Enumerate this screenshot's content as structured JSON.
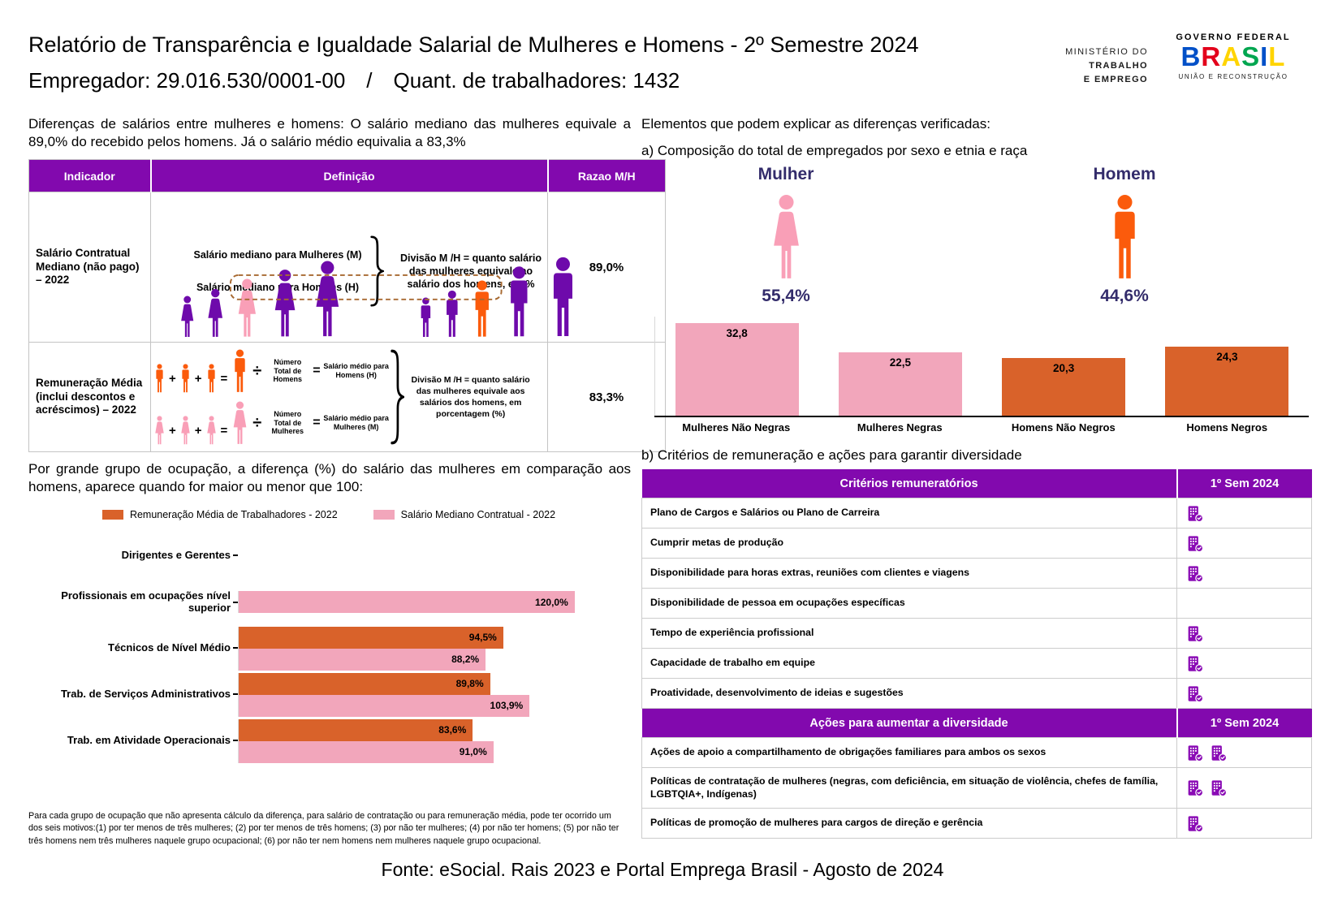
{
  "header": {
    "title": "Relatório de Transparência e Igualdade Salarial de Mulheres e Homens - 2º Semestre 2024",
    "employer": "Empregador: 29.016.530/0001-00",
    "separator": "/",
    "workers": "Quant. de trabalhadores: 1432",
    "ministry": {
      "line1": "MINISTÉRIO DO",
      "line2": "TRABALHO",
      "line3": "E EMPREGO"
    },
    "gov": {
      "top": "GOVERNO FEDERAL",
      "brand": [
        "B",
        "R",
        "A",
        "S",
        "I",
        "L"
      ],
      "brand_colors": [
        "#0050C8",
        "#E3001B",
        "#FFD400",
        "#00A650",
        "#0050C8",
        "#FFD400"
      ],
      "bottom": "UNIÃO E RECONSTRUÇÃO"
    }
  },
  "left": {
    "intro": "Diferenças de salários entre mulheres e homens: O salário mediano das mulheres equivale a 89,0% do recebido pelos homens. Já o salário médio equivalia a 83,3%",
    "table": {
      "headers": [
        "Indicador",
        "Definição",
        "Razao M/H"
      ],
      "rows": [
        {
          "indicator": "Salário Contratual Mediano (não pago) – 2022",
          "def_line1": "Salário mediano para Mulheres (M)",
          "def_line2": "Salário mediano para Homens (H)",
          "def_note": "Divisão M /H = quanto salário das mulheres equivale ao salário dos homens, em %",
          "ratio": "89,0%"
        },
        {
          "indicator": "Remuneração Média (inclui descontos e acréscimos) – 2022",
          "men_count_label": "Número Total de Homens",
          "men_avg_label": "Salário médio para Homens (H)",
          "women_count_label": "Número Total de Mulheres",
          "women_avg_label": "Salário médio para Mulheres (M)",
          "def_note": "Divisão M /H = quanto salário das mulheres equivale aos salários dos homens, em porcentagem (%)",
          "ops": {
            "plus": "+",
            "equals": "=",
            "divide": "÷"
          },
          "ratio": "83,3%"
        }
      ]
    },
    "occupation_intro": "Por grande grupo de ocupação, a diferença (%) do salário das mulheres em comparação aos homens, aparece quando for maior ou menor que 100:",
    "footnote": "Para cada grupo de ocupação que não apresenta cálculo da diferença, para salário de contratação ou para remuneração média, pode ter ocorrido um dos seis motivos:(1) por ter menos de três mulheres; (2) por ter menos de três homens; (3) por não ter mulheres; (4) por não ter homens; (5) por não ter três homens nem três mulheres naquele grupo ocupacional; (6) por não ter nem homens nem mulheres naquele grupo ocupacional."
  },
  "right": {
    "elements_title": "Elementos que podem explicar as diferenças verificadas:",
    "a_title": "a) Composição do total de empregados por sexo e etnia e raça",
    "mulher_label": "Mulher",
    "mulher_pct": "55,4%",
    "homem_label": "Homem",
    "homem_pct": "44,6%",
    "b_title": "b) Critérios de remuneração e ações para garantir diversidade",
    "criteria_sections": [
      {
        "header": "Critérios remuneratórios",
        "period": "1º Sem 2024",
        "rows": [
          {
            "label": "Plano de Cargos e Salários ou Plano de Carreira",
            "icons": 1
          },
          {
            "label": "Cumprir metas de produção",
            "icons": 1
          },
          {
            "label": "Disponibilidade para horas extras, reuniões com clientes e viagens",
            "icons": 1
          },
          {
            "label": "Disponibilidade de pessoa em ocupações específicas",
            "icons": 0
          },
          {
            "label": "Tempo de experiência profissional",
            "icons": 1
          },
          {
            "label": "Capacidade de trabalho em equipe",
            "icons": 1
          },
          {
            "label": "Proatividade, desenvolvimento de ideias e sugestões",
            "icons": 1
          }
        ]
      },
      {
        "header": "Ações para aumentar a diversidade",
        "period": "1º Sem 2024",
        "rows": [
          {
            "label": "Ações de apoio a compartilhamento de obrigações familiares para ambos os sexos",
            "icons": 2
          },
          {
            "label": "Políticas de contratação de mulheres (negras, com deficiência, em situação de violência, chefes de família, LGBTQIA+, Indígenas)",
            "icons": 2
          },
          {
            "label": "Políticas de promoção de mulheres para cargos de direção e gerência",
            "icons": 1
          }
        ]
      }
    ]
  },
  "footer": {
    "source": "Fonte: eSocial. Rais 2023 e Portal Emprega Brasil - Agosto de 2024"
  },
  "colors": {
    "purple_header": "#8209AE",
    "purple_icon": "#8A0BB5",
    "figure_purple": "#6E0AAB",
    "figure_pink": "#F99FB7",
    "figure_orange": "#FB5B0C",
    "bar_pink": "#F2A6BB",
    "bar_orange": "#D9622A",
    "navy_text": "#332C6B"
  },
  "chart_data": [
    {
      "type": "bar",
      "title": "a) Composição do total de empregados por sexo e etnia e raça",
      "categories": [
        "Mulheres Não Negras",
        "Mulheres Negras",
        "Homens Não Negros",
        "Homens Negros"
      ],
      "values": [
        32.8,
        22.5,
        20.3,
        24.3
      ],
      "labels": [
        "32,8",
        "22,5",
        "20,3",
        "24,3"
      ],
      "colors": [
        "#F2A6BB",
        "#F2A6BB",
        "#D9622A",
        "#D9622A"
      ],
      "xlabel": "",
      "ylabel": "",
      "ylim": [
        0,
        35
      ],
      "grid": false,
      "legend": "none"
    },
    {
      "type": "bar",
      "orientation": "horizontal",
      "title": "Por grande grupo de ocupação, a diferença (%) do salário das mulheres em comparação aos homens",
      "categories": [
        "Dirigentes e Gerentes",
        "Profissionais em ocupações nível superior",
        "Técnicos de Nível Médio",
        "Trab. de Serviços Administrativos",
        "Trab. em Atividade Operacionais"
      ],
      "series": [
        {
          "name": "Remuneração Média de Trabalhadores - 2022",
          "color": "#D9622A",
          "values": [
            null,
            null,
            94.5,
            89.8,
            83.6
          ],
          "labels": [
            "",
            "",
            "94,5%",
            "89,8%",
            "83,6%"
          ]
        },
        {
          "name": "Salário Mediano Contratual - 2022",
          "color": "#F2A6BB",
          "values": [
            null,
            120.0,
            88.2,
            103.9,
            91.0
          ],
          "labels": [
            "",
            "120,0%",
            "88,2%",
            "103,9%",
            "91,0%"
          ]
        }
      ],
      "xlim": [
        0,
        125
      ],
      "grid": false,
      "legend_position": "top"
    }
  ]
}
